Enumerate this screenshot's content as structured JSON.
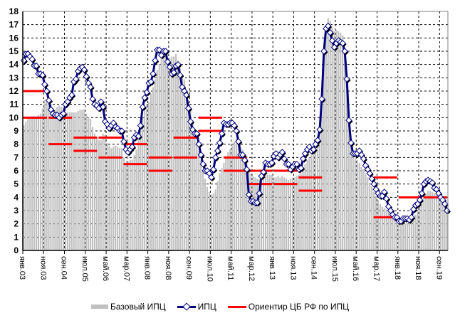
{
  "chart_data": {
    "type": "bar+line",
    "title": "",
    "xlabel": "",
    "ylabel": "",
    "ylim": [
      0,
      18
    ],
    "yticks": [
      0,
      1,
      2,
      3,
      4,
      5,
      6,
      7,
      8,
      9,
      10,
      11,
      12,
      13,
      14,
      15,
      16,
      17,
      18
    ],
    "grid": true,
    "legend_position": "bottom",
    "start": "янв.03",
    "frequency": "monthly",
    "xtick_labels": [
      "янв.03",
      "ноя.03",
      "сен.04",
      "июл.05",
      "май.06",
      "мар.07",
      "янв.08",
      "ноя.08",
      "сен.09",
      "июл.10",
      "май.11",
      "мар.12",
      "янв.13",
      "ноя.13",
      "сен.14",
      "июл.15",
      "май.16",
      "мар.17",
      "янв.18",
      "ноя.18",
      "сен.19"
    ],
    "series": [
      {
        "name": "Базовый ИПЦ",
        "kind": "bar",
        "color": "#c0c0c0",
        "values": [
          9.4,
          9.7,
          9.9,
          10.0,
          10.1,
          10.1,
          10.1,
          10.2,
          10.3,
          10.7,
          11.3,
          11.2,
          11.1,
          11.0,
          10.6,
          10.6,
          10.8,
          10.9,
          10.8,
          10.7,
          10.4,
          10.4,
          10.4,
          10.4,
          10.4,
          10.4,
          10.5,
          10.6,
          10.6,
          10.6,
          10.3,
          10.0,
          9.9,
          9.3,
          8.8,
          8.5,
          8.3,
          8.3,
          8.8,
          8.7,
          8.1,
          7.9,
          7.7,
          7.8,
          7.9,
          7.8,
          7.7,
          7.7,
          7.0,
          6.6,
          6.7,
          6.8,
          6.8,
          7.2,
          7.6,
          8.3,
          9.0,
          10.0,
          10.8,
          11.0,
          11.2,
          11.8,
          12.3,
          12.9,
          13.6,
          14.0,
          14.5,
          14.6,
          14.7,
          14.5,
          14.5,
          14.6,
          14.6,
          14.8,
          14.3,
          13.7,
          13.2,
          12.9,
          12.0,
          11.2,
          10.5,
          9.8,
          8.9,
          8.2,
          7.5,
          6.8,
          6.0,
          5.4,
          4.8,
          4.4,
          4.2,
          4.3,
          4.6,
          5.2,
          5.8,
          6.2,
          6.6,
          7.1,
          7.4,
          7.6,
          7.9,
          8.2,
          8.4,
          8.4,
          8.0,
          7.6,
          7.1,
          6.6,
          5.9,
          5.8,
          5.6,
          5.5,
          5.4,
          5.4,
          5.5,
          5.6,
          5.7,
          5.7,
          5.7,
          5.7,
          5.5,
          5.5,
          5.6,
          5.5,
          5.6,
          5.5,
          5.4,
          5.3,
          5.4,
          5.5,
          5.5,
          5.6,
          5.7,
          5.8,
          6.1,
          6.5,
          6.8,
          7.0,
          7.2,
          7.5,
          7.8,
          8.3,
          9.2,
          11.2,
          14.5,
          16.5,
          17.5,
          17.3,
          16.8,
          16.5,
          16.6,
          16.5,
          16.4,
          16.2,
          14.8,
          12.5,
          10.1,
          8.2,
          7.2,
          6.9,
          6.8,
          6.6,
          6.3,
          6.1,
          5.8,
          5.5,
          5.1,
          4.8,
          4.4,
          4.1,
          3.8,
          3.5,
          3.3,
          3.2,
          3.1,
          2.9,
          2.8,
          2.7,
          2.5,
          2.1,
          2.0,
          1.9,
          2.0,
          2.0,
          2.1,
          2.1,
          2.2,
          2.4,
          2.7,
          3.0,
          3.4,
          3.8,
          4.3,
          4.3,
          4.5,
          4.5,
          4.4,
          4.3,
          4.2,
          4.0,
          3.9,
          3.6,
          3.3,
          3.1
        ]
      },
      {
        "name": "ИПЦ",
        "kind": "line",
        "color": "#000080",
        "marker": "diamond",
        "values": [
          14.3,
          14.8,
          14.8,
          14.6,
          14.4,
          13.9,
          13.9,
          13.3,
          13.3,
          13.2,
          12.5,
          12.0,
          11.3,
          10.6,
          10.3,
          10.2,
          10.2,
          10.0,
          10.2,
          10.3,
          11.0,
          11.2,
          11.5,
          11.7,
          12.7,
          12.9,
          13.5,
          13.7,
          13.8,
          13.6,
          13.1,
          12.6,
          12.3,
          11.4,
          11.0,
          10.9,
          10.7,
          11.2,
          10.8,
          9.7,
          9.5,
          9.2,
          9.4,
          9.6,
          9.3,
          9.2,
          9.0,
          9.0,
          8.2,
          7.6,
          7.4,
          7.6,
          7.8,
          8.5,
          8.7,
          8.6,
          9.4,
          10.8,
          11.5,
          11.9,
          12.6,
          12.7,
          13.3,
          14.3,
          15.1,
          15.1,
          14.7,
          15.0,
          15.0,
          14.2,
          13.8,
          13.3,
          13.4,
          13.9,
          14.0,
          13.2,
          12.3,
          12.0,
          11.7,
          10.7,
          9.7,
          9.1,
          8.8,
          8.8,
          8.0,
          7.2,
          6.5,
          6.0,
          6.0,
          5.8,
          5.5,
          6.1,
          7.0,
          7.5,
          8.1,
          8.8,
          9.6,
          9.5,
          9.5,
          9.6,
          9.6,
          9.4,
          9.0,
          8.2,
          7.2,
          7.2,
          6.8,
          6.1,
          4.2,
          3.7,
          3.7,
          3.6,
          3.6,
          4.3,
          5.6,
          5.9,
          6.6,
          6.5,
          6.5,
          6.6,
          7.1,
          7.3,
          7.0,
          7.2,
          7.4,
          6.9,
          6.5,
          6.5,
          6.1,
          6.3,
          6.5,
          6.5,
          6.1,
          6.2,
          6.9,
          7.3,
          7.6,
          7.8,
          7.5,
          7.6,
          8.0,
          8.3,
          9.1,
          11.4,
          15.0,
          16.7,
          16.9,
          16.4,
          15.8,
          15.3,
          15.6,
          15.8,
          15.7,
          15.6,
          15.0,
          12.9,
          9.8,
          8.1,
          7.3,
          7.3,
          7.3,
          7.5,
          7.2,
          6.9,
          6.4,
          6.1,
          5.8,
          5.4,
          5.0,
          4.6,
          4.3,
          4.1,
          4.1,
          4.4,
          3.9,
          3.3,
          3.0,
          2.7,
          2.5,
          2.5,
          2.2,
          2.2,
          2.4,
          2.4,
          2.4,
          2.3,
          2.5,
          3.1,
          3.4,
          3.5,
          3.8,
          4.3,
          5.0,
          5.2,
          5.3,
          5.2,
          5.1,
          4.7,
          4.6,
          4.3,
          4.0,
          3.8,
          3.5,
          3.0
        ]
      },
      {
        "name": "Ориентир ЦБ РФ по ИПЦ",
        "kind": "segments",
        "color": "#ff0000",
        "segments": [
          {
            "year": 2003,
            "values": [
              10,
              12
            ]
          },
          {
            "year": 2004,
            "values": [
              8,
              10
            ]
          },
          {
            "year": 2005,
            "values": [
              7.5,
              8.5
            ]
          },
          {
            "year": 2006,
            "values": [
              7,
              8.5
            ]
          },
          {
            "year": 2007,
            "values": [
              6.5,
              8
            ]
          },
          {
            "year": 2008,
            "values": [
              6,
              7
            ]
          },
          {
            "year": 2009,
            "values": [
              7,
              8.5
            ]
          },
          {
            "year": 2010,
            "values": [
              9,
              10
            ]
          },
          {
            "year": 2011,
            "values": [
              6,
              7
            ]
          },
          {
            "year": 2012,
            "values": [
              5,
              6
            ]
          },
          {
            "year": 2013,
            "values": [
              5,
              6
            ]
          },
          {
            "year": 2014,
            "values": [
              4.5,
              5.5
            ]
          },
          {
            "year": 2017,
            "values": [
              2.5,
              5.5
            ]
          },
          {
            "year": 2018,
            "values": [
              4
            ]
          },
          {
            "year": 2019,
            "values": [
              4
            ]
          }
        ]
      }
    ]
  }
}
